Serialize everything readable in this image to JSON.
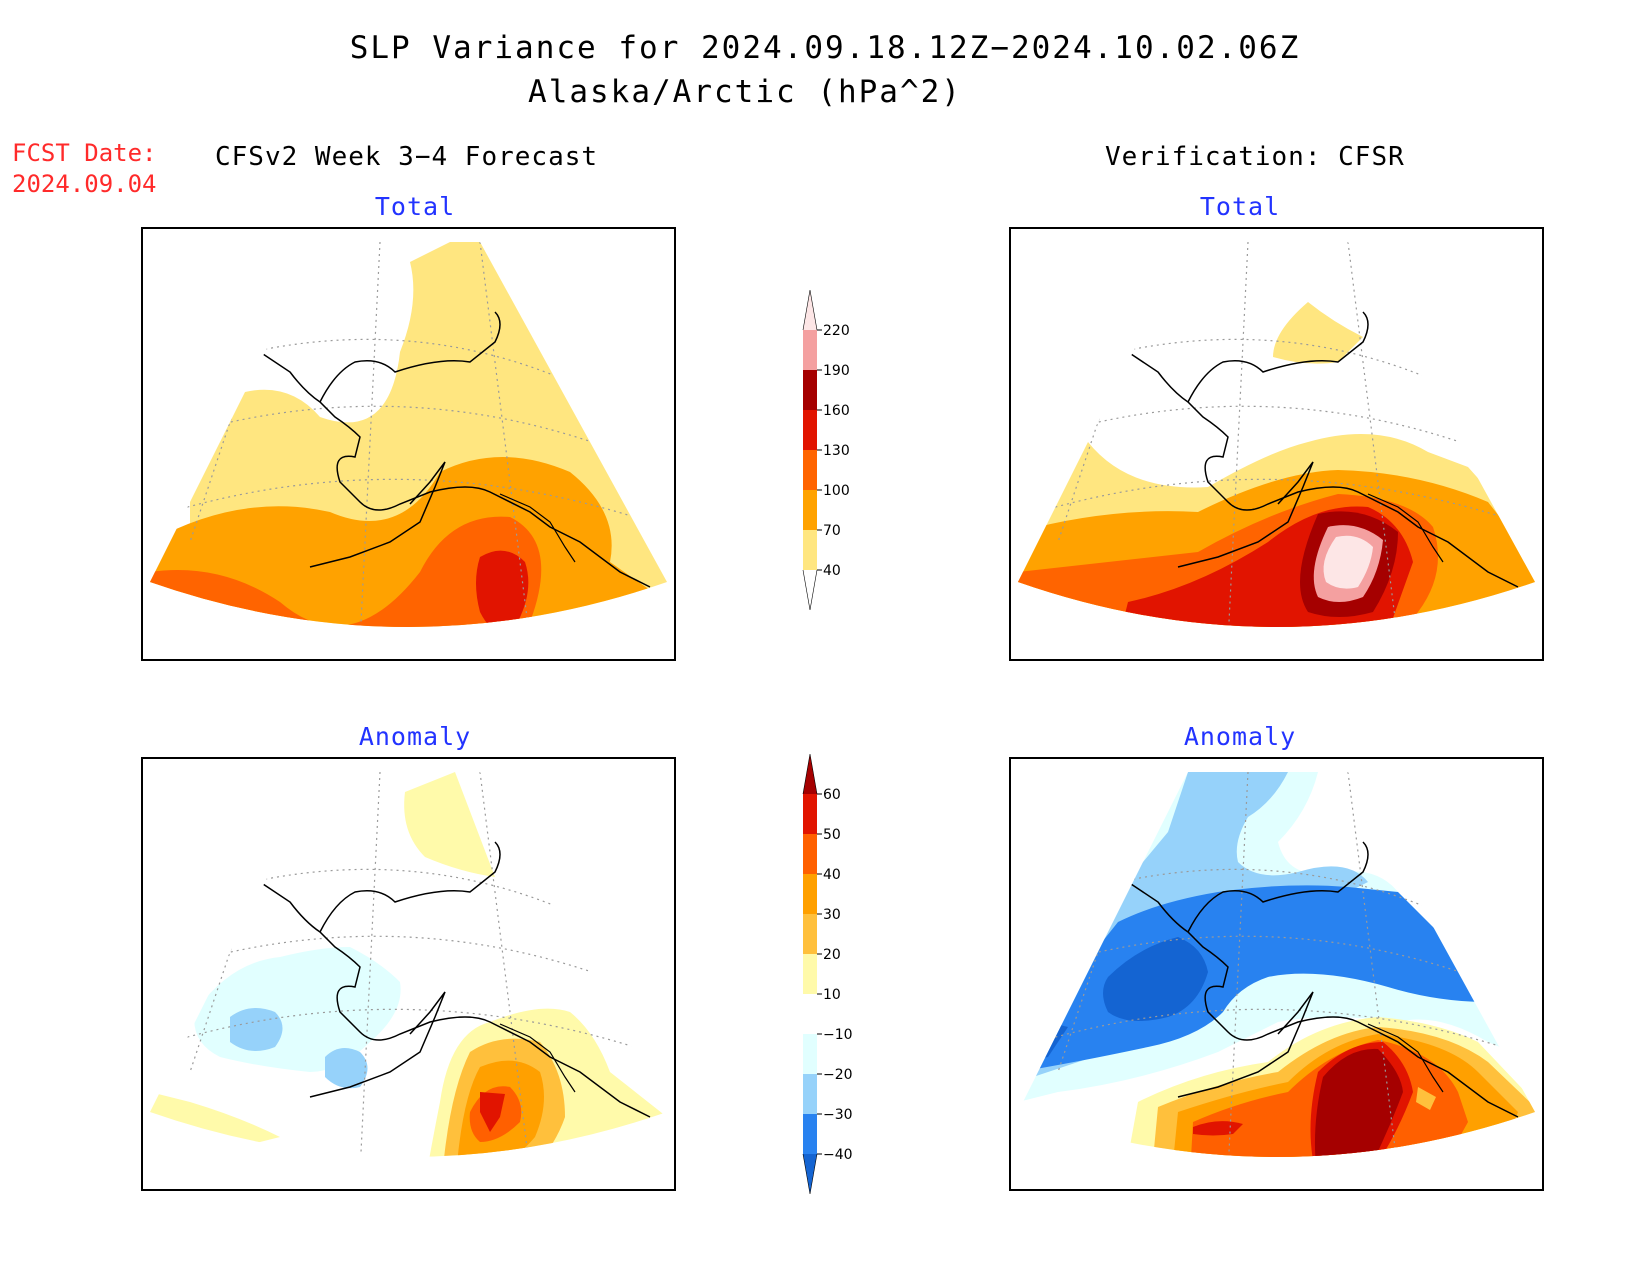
{
  "title": {
    "line1": "SLP Variance for 2024.09.18.12Z−2024.10.02.06Z",
    "line2": "Alaska/Arctic (hPa^2)"
  },
  "fcst_date": {
    "label": "FCST Date:",
    "value": "2024.09.04"
  },
  "columns": {
    "left": "CFSv2 Week 3−4 Forecast",
    "right": "Verification: CFSR"
  },
  "panels": {
    "forecast_total": "Total",
    "verif_total": "Total",
    "forecast_anomaly": "Anomaly",
    "verif_anomaly": "Anomaly"
  },
  "colorbar_total": {
    "levels": [
      "40",
      "70",
      "100",
      "130",
      "160",
      "190",
      "220"
    ],
    "colors": [
      "#ffffff",
      "#ffe680",
      "#ffa200",
      "#ff6400",
      "#e11400",
      "#a50000",
      "#f4a0a0",
      "#fde6e6"
    ]
  },
  "colorbar_anomaly": {
    "levels": [
      "−40",
      "−30",
      "−20",
      "−10",
      "10",
      "20",
      "30",
      "40",
      "50",
      "60"
    ],
    "colors": [
      "#1464d2",
      "#2882f0",
      "#96d2fa",
      "#e1ffff",
      "#ffffff",
      "#fffaaa",
      "#ffc03c",
      "#ffa000",
      "#ff6000",
      "#e11400",
      "#a50000"
    ]
  },
  "map_colors": {
    "coast": "#000000",
    "grid": "#9a9a9a",
    "frame": "#000000"
  }
}
